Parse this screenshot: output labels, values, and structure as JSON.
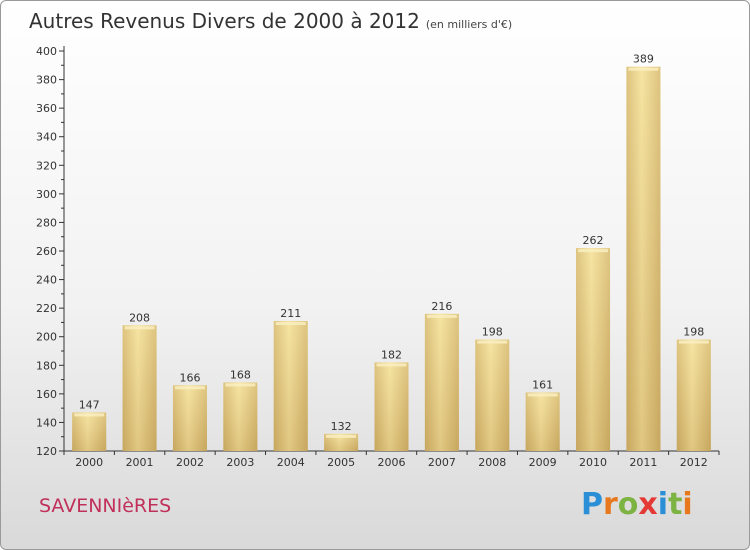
{
  "header": {
    "title": "Autres Revenus Divers de 2000 à 2012",
    "subtitle": "(en milliers d'€)"
  },
  "footer": {
    "commune": "SAVENNIèRES",
    "logo_letters": [
      "P",
      "r",
      "o",
      "x",
      "i",
      "t",
      "i"
    ],
    "logo_colors": [
      "#2a8fd6",
      "#e8781e",
      "#7cb342",
      "#e53935",
      "#2a8fd6",
      "#7cb342",
      "#e8781e"
    ]
  },
  "colors": {
    "bar_light": "#f6e3a0",
    "bar_dark": "#c8a860",
    "axis": "#333333",
    "grid_tick": "#555555"
  },
  "chart_data": {
    "type": "bar",
    "title": "Autres Revenus Divers de 2000 à 2012",
    "subtitle": "(en milliers d'€)",
    "categories": [
      "2000",
      "2001",
      "2002",
      "2003",
      "2004",
      "2005",
      "2006",
      "2007",
      "2008",
      "2009",
      "2010",
      "2011",
      "2012"
    ],
    "values": [
      147,
      208,
      166,
      168,
      211,
      132,
      182,
      216,
      198,
      161,
      262,
      389,
      198
    ],
    "ylim": [
      120,
      400
    ],
    "yticks": [
      120,
      140,
      160,
      180,
      200,
      220,
      240,
      260,
      280,
      300,
      320,
      340,
      360,
      380,
      400
    ],
    "grid": false,
    "legend": "none"
  }
}
